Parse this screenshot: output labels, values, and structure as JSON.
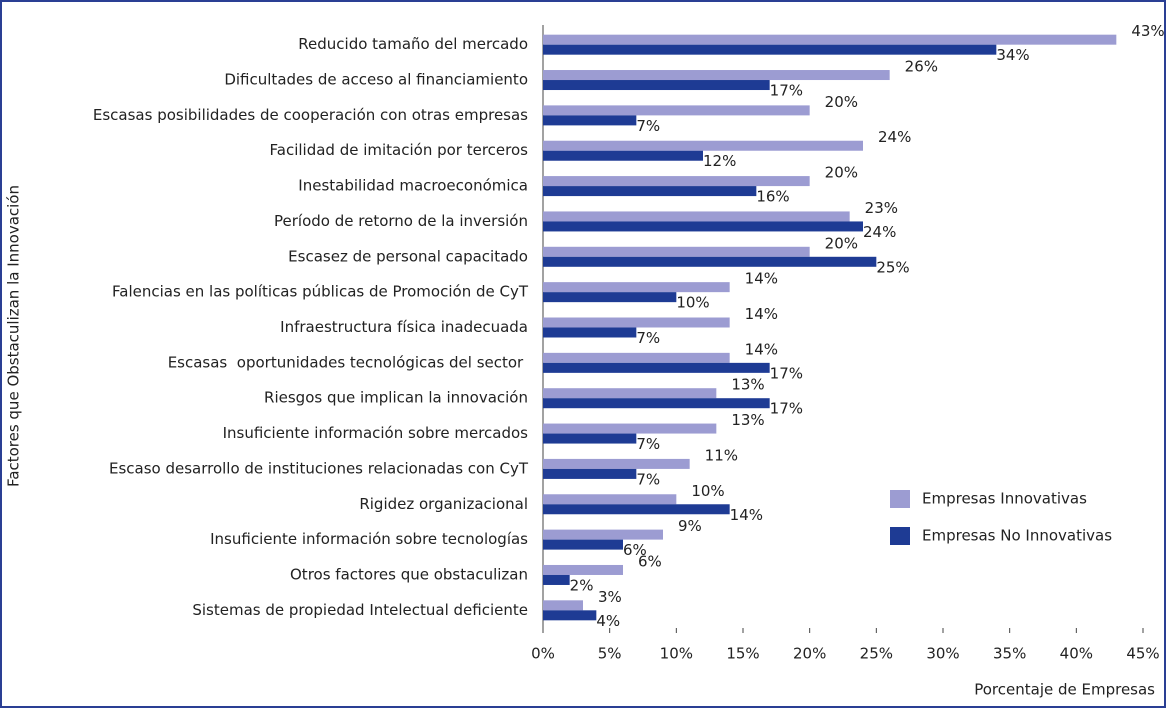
{
  "chart_data": {
    "type": "barh",
    "xlabel": "Porcentaje de Empresas",
    "ylabel": "Factores que Obstaculizan la Innovación",
    "categories": [
      "Reducido tamaño del mercado",
      "Dificultades de acceso al financiamiento",
      "Escasas posibilidades de cooperación con otras empresas",
      "Facilidad de imitación por terceros",
      "Inestabilidad macroeconómica",
      "Período de retorno de la inversión",
      "Escasez de personal capacitado",
      "Falencias en las políticas públicas de Promoción de CyT",
      "Infraestructura física inadecuada",
      "Escasas  oportunidades tecnológicas del sector ",
      "Riesgos que implican la innovación",
      "Insuficiente información sobre mercados",
      "Escaso desarrollo de instituciones relacionadas con CyT",
      "Rigidez organizacional",
      "Insuficiente información sobre tecnologías",
      "Otros factores que obstaculizan",
      "Sistemas de propiedad Intelectual deficiente"
    ],
    "series": [
      {
        "name": "Empresas Innovativas",
        "color": "#9c9cd2",
        "values": [
          43,
          26,
          20,
          24,
          20,
          23,
          20,
          14,
          14,
          14,
          13,
          13,
          11,
          10,
          9,
          6,
          3
        ],
        "value_labels": [
          "43%",
          "26%",
          "20%",
          "24%",
          "20%",
          "23%",
          "20%",
          "14%",
          "14%",
          "14%",
          "13%",
          "13%",
          "11%",
          "10%",
          "9%",
          "6%",
          "3%"
        ]
      },
      {
        "name": "Empresas No Innovativas",
        "color": "#1e3b94",
        "values": [
          34,
          17,
          7,
          12,
          16,
          24,
          25,
          10,
          7,
          17,
          17,
          7,
          7,
          14,
          6,
          2,
          4
        ],
        "value_labels": [
          "34%",
          "17%",
          "7%",
          "12%",
          "16%",
          "24%",
          "25%",
          "10%",
          "7%",
          "17%",
          "17%",
          "7%",
          "7%",
          "14%",
          "6%",
          "2%",
          "4%"
        ]
      }
    ],
    "xlim": [
      0,
      45
    ],
    "xticks": [
      {
        "value": 0,
        "label": "0%"
      },
      {
        "value": 5,
        "label": "5%"
      },
      {
        "value": 10,
        "label": "10%"
      },
      {
        "value": 15,
        "label": "15%"
      },
      {
        "value": 20,
        "label": "20%"
      },
      {
        "value": 25,
        "label": "25%"
      },
      {
        "value": 30,
        "label": "30%"
      },
      {
        "value": 35,
        "label": "35%"
      },
      {
        "value": 40,
        "label": "40%"
      },
      {
        "value": 45,
        "label": "45%"
      }
    ],
    "legend": "lower right",
    "grid": false
  }
}
